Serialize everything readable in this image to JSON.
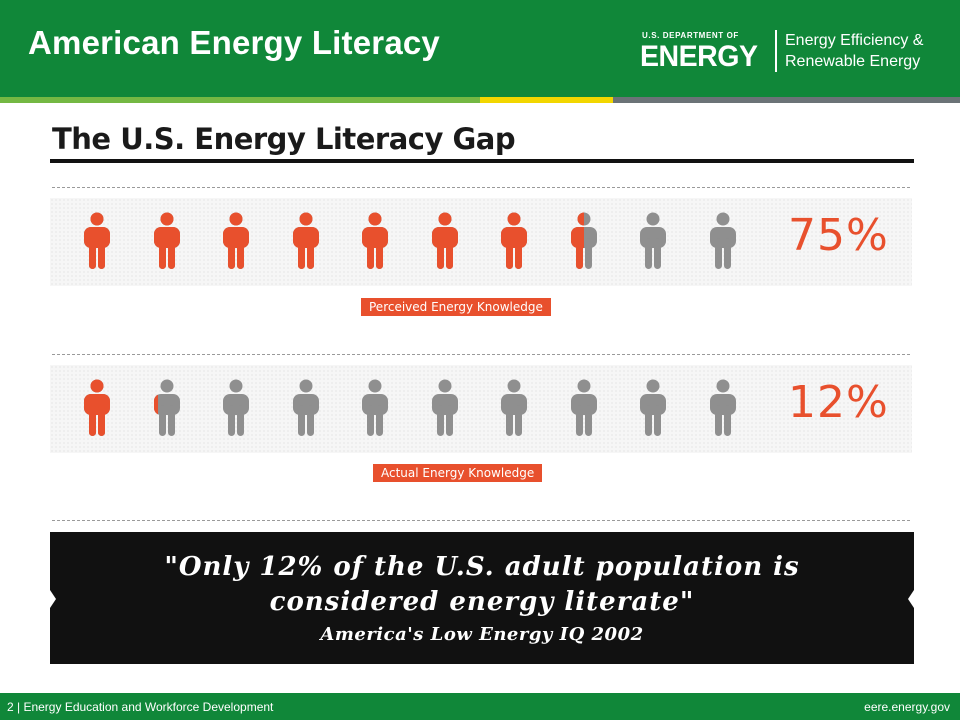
{
  "header": {
    "title": "American Energy Literacy",
    "logo_top": "U.S. DEPARTMENT OF",
    "logo_main": "ENERGY",
    "logo_sub_line1": "Energy Efficiency &",
    "logo_sub_line2": "Renewable Energy"
  },
  "colors": {
    "header_green": "#108739",
    "accent_orange": "#e8502d",
    "person_gray": "#8f8f8f",
    "stripe_green": "#74b843",
    "stripe_yellow": "#f2d600",
    "stripe_gray": "#6b7377"
  },
  "infographic": {
    "title": "The U.S. Energy Literacy Gap",
    "rows": [
      {
        "percent_label": "75%",
        "fill_fraction": 0.75,
        "icon_count": 10,
        "label": "Perceived Energy Knowledge"
      },
      {
        "percent_label": "12%",
        "fill_fraction": 0.12,
        "icon_count": 10,
        "label": "Actual Energy Knowledge"
      }
    ],
    "icon": "person-icon",
    "quote_line1": "\"Only 12% of the U.S. adult population is",
    "quote_line2": "considered energy literate\"",
    "quote_source": "America's Low Energy IQ 2002"
  },
  "footer": {
    "left": "2 | Energy Education and Workforce Development",
    "right": "eere.energy.gov"
  }
}
